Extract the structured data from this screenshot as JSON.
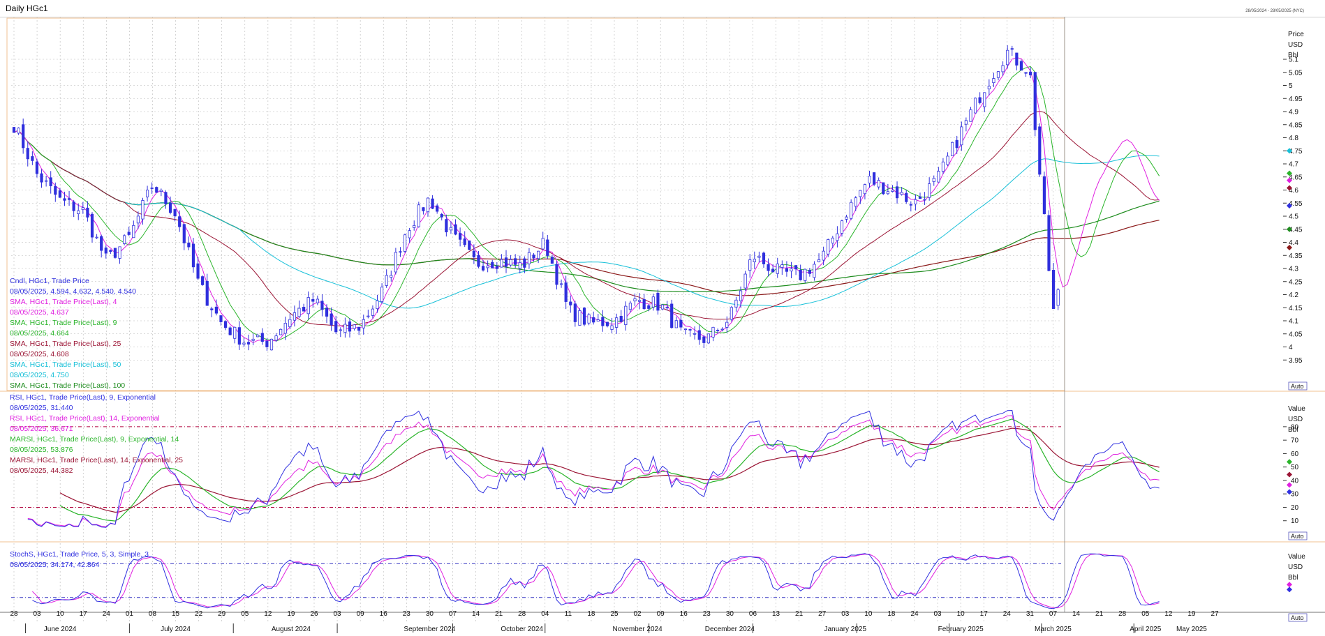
{
  "window": {
    "title": "Daily HGc1",
    "date_range": "28/05/2024 - 28/05/2025 (NYC)"
  },
  "colors": {
    "candle": "#2f2fdd",
    "sma4": "#e020e0",
    "sma9": "#2bb52b",
    "sma25": "#9b1535",
    "sma50": "#18c0d8",
    "sma100": "#1e8c1e",
    "sma_long": "#8b1a1a",
    "rsi9": "#3030e0",
    "rsi14": "#e020e0",
    "marsi9": "#2bb52b",
    "marsi14": "#9b1535",
    "stoch_k": "#3030e0",
    "stoch_d": "#e020e0",
    "grid": "#b8b8b8",
    "ref_line": "#b0003a",
    "divider": "#f0c090"
  },
  "price_panel": {
    "axis_header": [
      "Price",
      "USD",
      "Bbl"
    ],
    "ticks": [
      5.1,
      5.05,
      5,
      4.95,
      4.9,
      4.85,
      4.8,
      4.75,
      4.7,
      4.65,
      4.6,
      4.55,
      4.5,
      4.45,
      4.4,
      4.35,
      4.3,
      4.25,
      4.2,
      4.15,
      4.1,
      4.05,
      4,
      3.95
    ],
    "ylim": [
      3.9,
      5.22
    ],
    "auto_label": "Auto",
    "legend": [
      {
        "label": "Cndl, HGc1, Trade Price",
        "value": "08/05/2025, 4.594, 4.632, 4.540, 4.540",
        "color_key": "candle"
      },
      {
        "label": "SMA, HGc1, Trade Price(Last),  4",
        "value": "08/05/2025, 4.637",
        "color_key": "sma4"
      },
      {
        "label": "SMA, HGc1, Trade Price(Last),  9",
        "value": "08/05/2025, 4.664",
        "color_key": "sma9"
      },
      {
        "label": "SMA, HGc1, Trade Price(Last),  25",
        "value": "08/05/2025, 4.608",
        "color_key": "sma25"
      },
      {
        "label": "SMA, HGc1, Trade Price(Last),  50",
        "value": "08/05/2025, 4.750",
        "color_key": "sma50"
      },
      {
        "label": "SMA, HGc1, Trade Price(Last),  100",
        "value": "",
        "color_key": "sma100"
      }
    ]
  },
  "rsi_panel": {
    "axis_header": [
      "Value",
      "USD",
      "Bbl"
    ],
    "ticks": [
      80,
      70,
      60,
      50,
      40,
      30,
      20,
      10
    ],
    "ylim": [
      0,
      95
    ],
    "ref_lines": [
      80,
      20
    ],
    "auto_label": "Auto",
    "legend": [
      {
        "label": "RSI, HGc1, Trade Price(Last),  9, Exponential",
        "value": "08/05/2025, 31.440",
        "color_key": "rsi9"
      },
      {
        "label": "RSI, HGc1, Trade Price(Last),  14, Exponential",
        "value": "08/05/2025, 36.671",
        "color_key": "rsi14"
      },
      {
        "label": "MARSI, HGc1, Trade Price(Last),  9, Exponential, 14",
        "value": "08/05/2025, 53.876",
        "color_key": "marsi9"
      },
      {
        "label": "MARSI, HGc1, Trade Price(Last),  14, Exponential, 25",
        "value": "08/05/2025, 44.382",
        "color_key": "marsi14"
      }
    ]
  },
  "stoch_panel": {
    "axis_header": [
      "Value",
      "USD",
      "Bbl"
    ],
    "ticks": [],
    "ylim": [
      -5,
      110
    ],
    "ref_lines": [
      80,
      20
    ],
    "auto_label": "Auto",
    "legend": [
      {
        "label": "StochS, HGc1, Trade Price,  5, 3, Simple,  3",
        "value": "08/05/2025, 34.174, 42.864",
        "color_key": "stoch_k"
      }
    ]
  },
  "x_axis": {
    "day_labels": [
      "28",
      "03",
      "10",
      "17",
      "24",
      "01",
      "08",
      "15",
      "22",
      "29",
      "05",
      "12",
      "19",
      "26",
      "03",
      "09",
      "16",
      "23",
      "30",
      "07",
      "14",
      "21",
      "28",
      "04",
      "11",
      "18",
      "25",
      "02",
      "09",
      "16",
      "23",
      "30",
      "06",
      "13",
      "21",
      "27",
      "03",
      "10",
      "18",
      "24",
      "03",
      "10",
      "17",
      "24",
      "31",
      "07",
      "14",
      "21",
      "28",
      "05",
      "12",
      "19",
      "27"
    ],
    "month_labels": [
      "June 2024",
      "July 2024",
      "August 2024",
      "September 2024",
      "October 2024",
      "November 2024",
      "December 2024",
      "January 2025",
      "February 2025",
      "March 2025",
      "April 2025",
      "May 2025"
    ],
    "month_label_day_index": [
      2,
      7,
      12,
      18,
      22,
      27,
      31,
      36,
      41,
      45,
      49,
      51
    ],
    "month_boundary_day_index": [
      0.5,
      5,
      9.5,
      14,
      19,
      23,
      27.5,
      32,
      36.5,
      40.5,
      44.5,
      48.5
    ]
  },
  "chart_data": [
    {
      "type": "candlestick",
      "title": "Daily HGc1",
      "ylabel": "Price USD Bbl",
      "ylim": [
        3.9,
        5.22
      ],
      "last_bar": {
        "date": "08/05/2025",
        "open": 4.594,
        "high": 4.632,
        "low": 4.54,
        "close": 4.54
      },
      "close_anchors_by_week_index": [
        [
          0,
          4.85
        ],
        [
          1,
          4.66
        ],
        [
          2,
          4.56
        ],
        [
          3,
          4.52
        ],
        [
          4,
          4.33
        ],
        [
          5,
          4.42
        ],
        [
          6,
          4.62
        ],
        [
          7,
          4.51
        ],
        [
          8,
          4.24
        ],
        [
          9,
          4.09
        ],
        [
          10,
          4.02
        ],
        [
          11,
          4.02
        ],
        [
          12,
          4.12
        ],
        [
          13,
          4.18
        ],
        [
          14,
          4.05
        ],
        [
          15,
          4.08
        ],
        [
          16,
          4.22
        ],
        [
          17,
          4.45
        ],
        [
          18,
          4.57
        ],
        [
          19,
          4.42
        ],
        [
          20,
          4.32
        ],
        [
          21,
          4.33
        ],
        [
          22,
          4.31
        ],
        [
          23,
          4.4
        ],
        [
          24,
          4.14
        ],
        [
          25,
          4.09
        ],
        [
          26,
          4.1
        ],
        [
          27,
          4.18
        ],
        [
          28,
          4.16
        ],
        [
          29,
          4.04
        ],
        [
          30,
          4.03
        ],
        [
          31,
          4.11
        ],
        [
          32,
          4.35
        ],
        [
          33,
          4.29
        ],
        [
          34,
          4.27
        ],
        [
          35,
          4.34
        ],
        [
          36,
          4.51
        ],
        [
          37,
          4.64
        ],
        [
          38,
          4.6
        ],
        [
          39,
          4.55
        ],
        [
          40,
          4.64
        ],
        [
          41,
          4.82
        ],
        [
          42,
          4.99
        ],
        [
          43,
          5.13
        ],
        [
          44,
          5.05
        ],
        [
          45,
          4.13
        ],
        [
          46,
          4.46
        ],
        [
          47,
          4.7
        ],
        [
          48,
          4.84
        ],
        [
          49,
          4.58
        ],
        [
          49.6,
          4.54
        ]
      ],
      "series": [
        {
          "name": "SMA 4",
          "last": 4.637
        },
        {
          "name": "SMA 9",
          "last": 4.664
        },
        {
          "name": "SMA 25",
          "last": 4.608
        },
        {
          "name": "SMA 50",
          "last": 4.75
        },
        {
          "name": "SMA 100"
        }
      ]
    },
    {
      "type": "line",
      "series": [
        {
          "name": "RSI 9",
          "last": 31.44
        },
        {
          "name": "RSI 14",
          "last": 36.671
        },
        {
          "name": "MARSI 9",
          "last": 53.876
        },
        {
          "name": "MARSI 14",
          "last": 44.382
        }
      ],
      "ylim": [
        0,
        95
      ]
    },
    {
      "type": "line",
      "series": [
        {
          "name": "StochS %K",
          "last": 34.174
        },
        {
          "name": "StochS %D",
          "last": 42.864
        }
      ],
      "ylim": [
        -5,
        110
      ]
    }
  ]
}
